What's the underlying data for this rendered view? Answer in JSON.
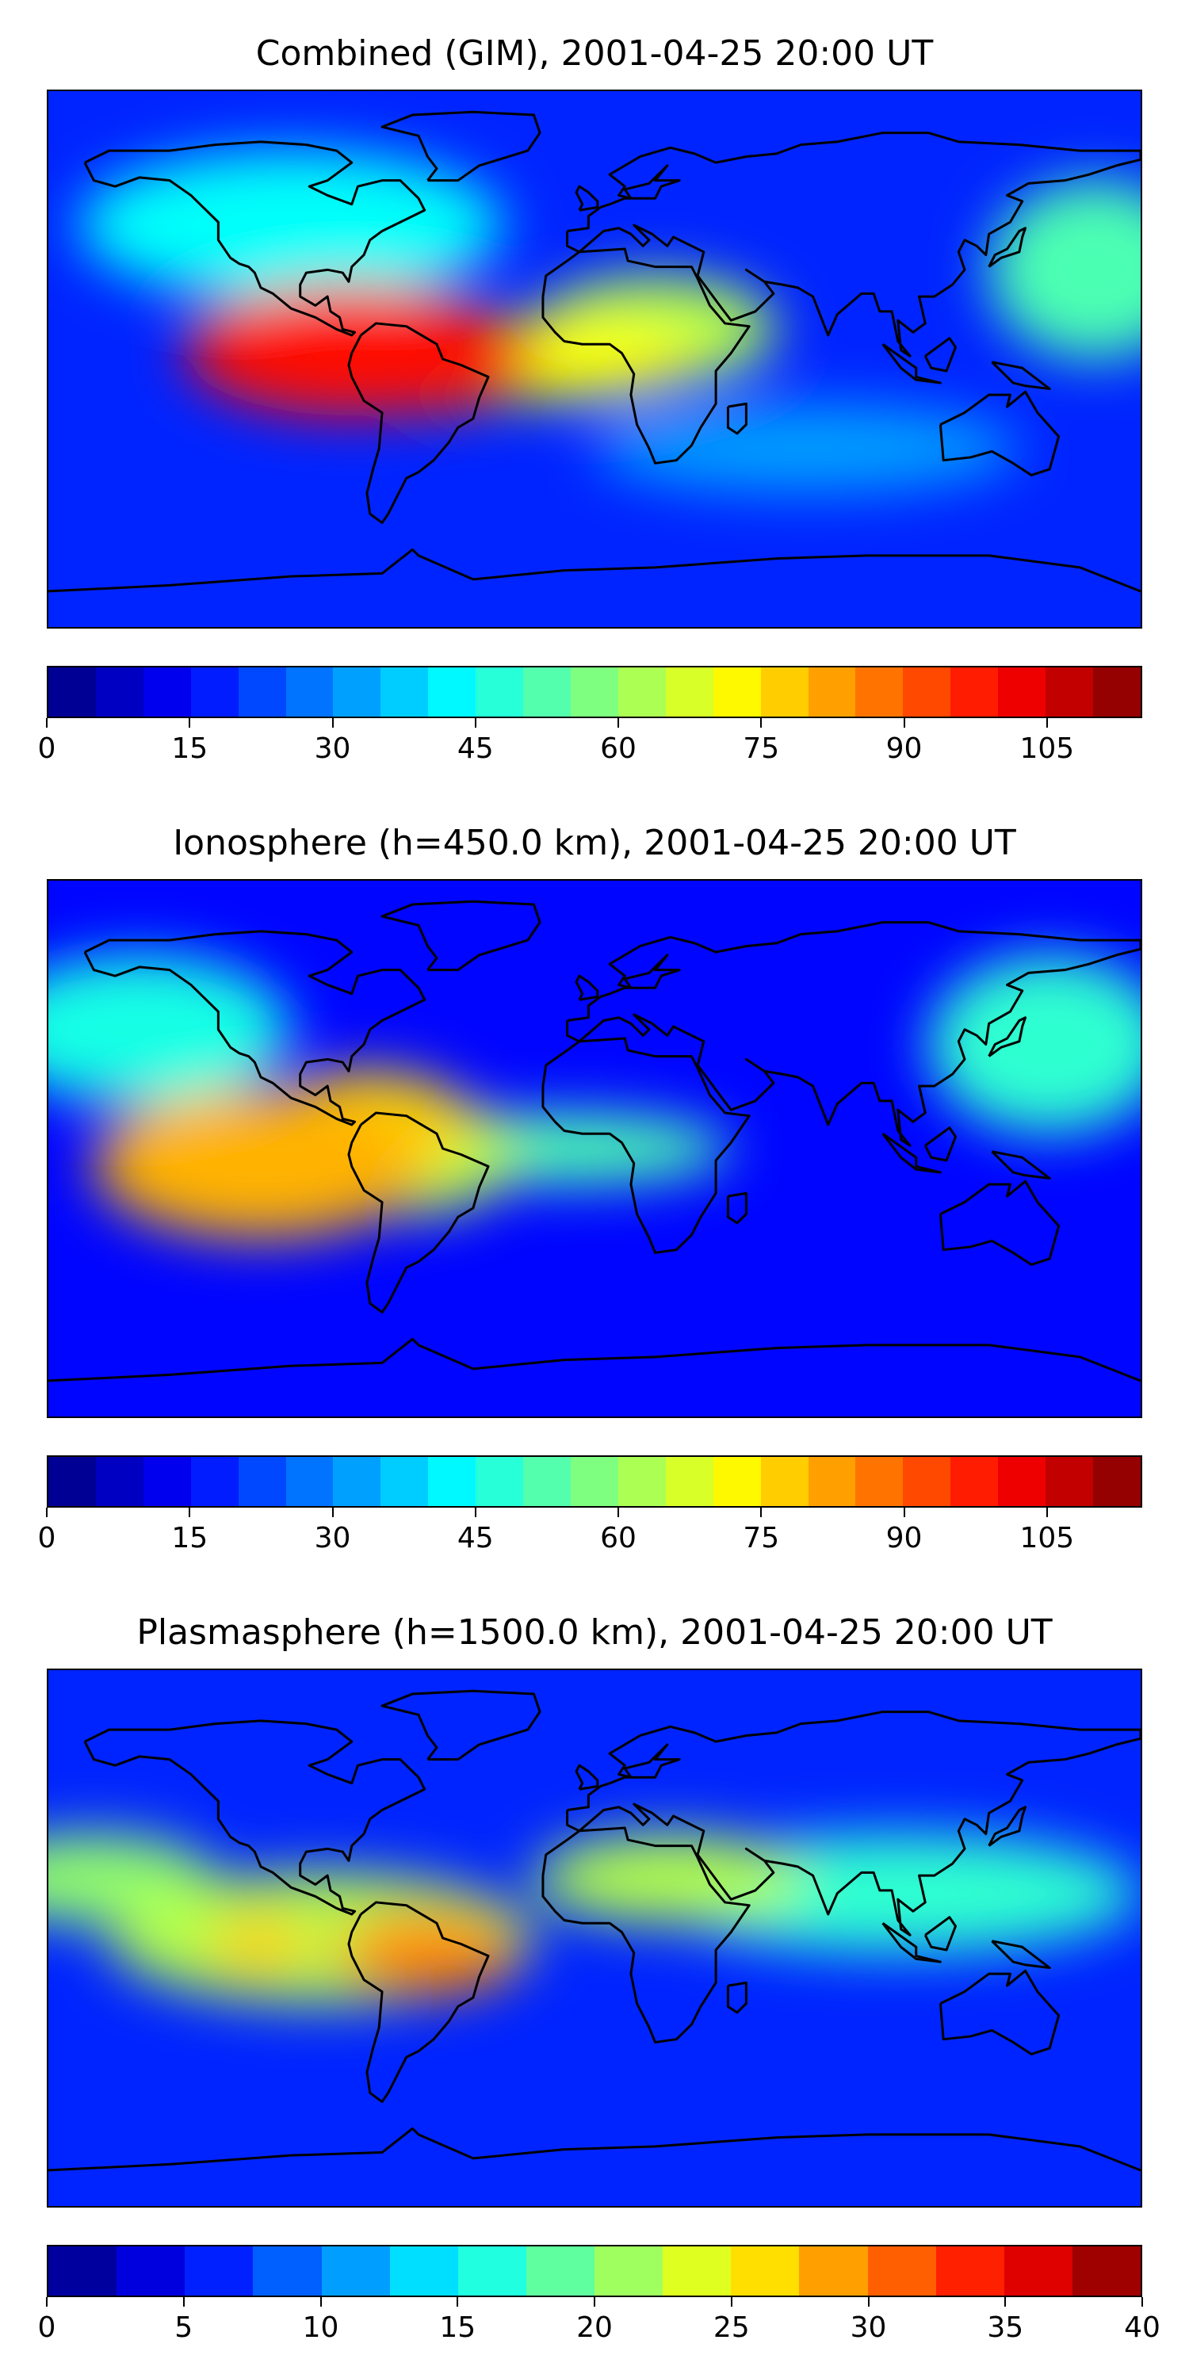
{
  "panels": [
    {
      "id": "combined",
      "title": "Combined (GIM), 2001-04-25 20:00 UT",
      "colorbar": {
        "vmin": 0,
        "vmax": 115,
        "ticks": [
          "0",
          "15",
          "30",
          "45",
          "60",
          "75",
          "90",
          "105"
        ],
        "tick_values": [
          0,
          15,
          30,
          45,
          60,
          75,
          90,
          105
        ],
        "levels": 23
      },
      "field": {
        "background_level": 0.16,
        "blobs": [
          {
            "lon": -80,
            "lat": 3,
            "rx": 55,
            "ry": 22,
            "level": 0.86
          },
          {
            "lon": -55,
            "lat": 0,
            "rx": 35,
            "ry": 18,
            "level": 0.8
          },
          {
            "lon": -10,
            "lat": 0,
            "rx": 45,
            "ry": 14,
            "level": 0.62
          },
          {
            "lon": 20,
            "lat": 10,
            "rx": 40,
            "ry": 18,
            "level": 0.55
          },
          {
            "lon": -100,
            "lat": 45,
            "rx": 70,
            "ry": 25,
            "level": 0.38
          },
          {
            "lon": 165,
            "lat": 30,
            "rx": 35,
            "ry": 30,
            "level": 0.45
          },
          {
            "lon": 70,
            "lat": -30,
            "rx": 70,
            "ry": 15,
            "level": 0.28
          }
        ]
      }
    },
    {
      "id": "ionosphere",
      "title": "Ionosphere  (h=450.0 km), 2001-04-25 20:00 UT",
      "colorbar": {
        "vmin": 0,
        "vmax": 115,
        "ticks": [
          "0",
          "15",
          "30",
          "45",
          "60",
          "75",
          "90",
          "105"
        ],
        "tick_values": [
          0,
          15,
          30,
          45,
          60,
          75,
          90,
          105
        ],
        "levels": 23
      },
      "field": {
        "background_level": 0.13,
        "blobs": [
          {
            "lon": -110,
            "lat": -5,
            "rx": 55,
            "ry": 25,
            "level": 0.7
          },
          {
            "lon": -75,
            "lat": 8,
            "rx": 35,
            "ry": 18,
            "level": 0.66
          },
          {
            "lon": -60,
            "lat": -2,
            "rx": 35,
            "ry": 20,
            "level": 0.55
          },
          {
            "lon": -10,
            "lat": 0,
            "rx": 55,
            "ry": 12,
            "level": 0.45
          },
          {
            "lon": 150,
            "lat": 35,
            "rx": 40,
            "ry": 30,
            "level": 0.42
          },
          {
            "lon": -150,
            "lat": 40,
            "rx": 50,
            "ry": 25,
            "level": 0.4
          }
        ]
      }
    },
    {
      "id": "plasmasphere",
      "title": "Plasmasphere (h=1500.0 km), 2001-04-25 20:00 UT",
      "colorbar": {
        "vmin": 0,
        "vmax": 40,
        "ticks": [
          "0",
          "5",
          "10",
          "15",
          "20",
          "25",
          "30",
          "35",
          "40"
        ],
        "tick_values": [
          0,
          5,
          10,
          15,
          20,
          25,
          30,
          35,
          40
        ],
        "levels": 16
      },
      "field": {
        "background_level": 0.16,
        "blobs": [
          {
            "lon": -55,
            "lat": -5,
            "rx": 30,
            "ry": 14,
            "level": 0.74
          },
          {
            "lon": -110,
            "lat": -2,
            "rx": 18,
            "ry": 9,
            "level": 0.68
          },
          {
            "lon": -90,
            "lat": 0,
            "rx": 70,
            "ry": 22,
            "level": 0.55
          },
          {
            "lon": 25,
            "lat": 20,
            "rx": 45,
            "ry": 15,
            "level": 0.55
          },
          {
            "lon": 100,
            "lat": 15,
            "rx": 80,
            "ry": 20,
            "level": 0.42
          },
          {
            "lon": -165,
            "lat": 20,
            "rx": 40,
            "ry": 15,
            "level": 0.52
          }
        ]
      }
    }
  ],
  "colors": {
    "coastline": "#000000",
    "jet_stops": [
      "#00007f",
      "#0000ff",
      "#007fff",
      "#00ffff",
      "#7fff7f",
      "#ffff00",
      "#ff7f00",
      "#ff0000",
      "#7f0000"
    ]
  }
}
